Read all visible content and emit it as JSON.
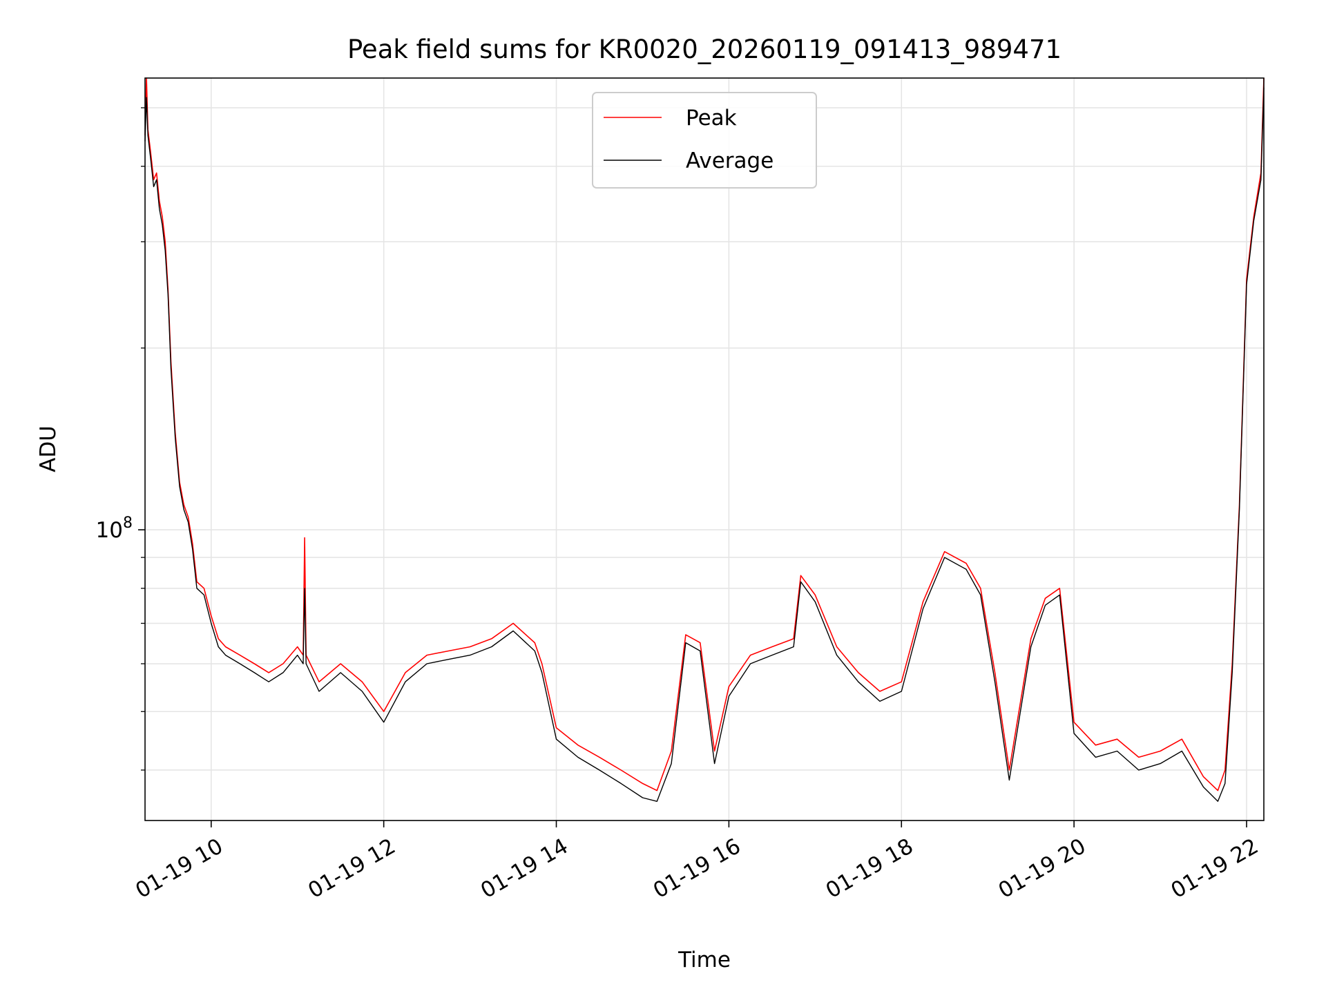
{
  "chart_data": {
    "type": "line",
    "title": "Peak field sums for KR0020_20260119_091413_989471",
    "xlabel": "Time",
    "ylabel": "ADU",
    "y_scale": "log",
    "grid": true,
    "legend_position": "top-center",
    "x_range": [
      "01-19 09:14",
      "01-19 22:12"
    ],
    "y_range": [
      33000000,
      560000000
    ],
    "x_ticks": [
      {
        "t": "01-19 10:00",
        "label": "01-19 10"
      },
      {
        "t": "01-19 12:00",
        "label": "01-19 12"
      },
      {
        "t": "01-19 14:00",
        "label": "01-19 14"
      },
      {
        "t": "01-19 16:00",
        "label": "01-19 16"
      },
      {
        "t": "01-19 18:00",
        "label": "01-19 18"
      },
      {
        "t": "01-19 20:00",
        "label": "01-19 20"
      },
      {
        "t": "01-19 22:00",
        "label": "01-19 22"
      }
    ],
    "y_major_ticks": [
      {
        "value": 100000000,
        "label_base": "10",
        "label_exp": "8"
      }
    ],
    "y_minor_ticks": [
      40000000,
      50000000,
      60000000,
      70000000,
      80000000,
      90000000,
      200000000,
      300000000,
      400000000,
      500000000
    ],
    "series": [
      {
        "name": "Peak",
        "color": "#ff0000",
        "x": [
          "01-19 09:14",
          "01-19 09:15",
          "01-19 09:16",
          "01-19 09:18",
          "01-19 09:20",
          "01-19 09:22",
          "01-19 09:24",
          "01-19 09:26",
          "01-19 09:28",
          "01-19 09:30",
          "01-19 09:32",
          "01-19 09:35",
          "01-19 09:38",
          "01-19 09:41",
          "01-19 09:44",
          "01-19 09:47",
          "01-19 09:50",
          "01-19 09:55",
          "01-19 10:00",
          "01-19 10:05",
          "01-19 10:10",
          "01-19 10:20",
          "01-19 10:30",
          "01-19 10:40",
          "01-19 10:50",
          "01-19 11:00",
          "01-19 11:04",
          "01-19 11:05",
          "01-19 11:06",
          "01-19 11:15",
          "01-19 11:30",
          "01-19 11:45",
          "01-19 12:00",
          "01-19 12:15",
          "01-19 12:30",
          "01-19 12:45",
          "01-19 13:00",
          "01-19 13:15",
          "01-19 13:30",
          "01-19 13:45",
          "01-19 13:50",
          "01-19 14:00",
          "01-19 14:15",
          "01-19 14:30",
          "01-19 14:45",
          "01-19 15:00",
          "01-19 15:10",
          "01-19 15:20",
          "01-19 15:30",
          "01-19 15:40",
          "01-19 15:50",
          "01-19 16:00",
          "01-19 16:15",
          "01-19 16:30",
          "01-19 16:45",
          "01-19 16:50",
          "01-19 17:00",
          "01-19 17:15",
          "01-19 17:30",
          "01-19 17:45",
          "01-19 18:00",
          "01-19 18:15",
          "01-19 18:30",
          "01-19 18:45",
          "01-19 18:55",
          "01-19 19:05",
          "01-19 19:15",
          "01-19 19:30",
          "01-19 19:40",
          "01-19 19:50",
          "01-19 20:00",
          "01-19 20:15",
          "01-19 20:30",
          "01-19 20:45",
          "01-19 21:00",
          "01-19 21:15",
          "01-19 21:30",
          "01-19 21:40",
          "01-19 21:45",
          "01-19 21:50",
          "01-19 21:55",
          "01-19 22:00",
          "01-19 22:05",
          "01-19 22:10",
          "01-19 22:12"
        ],
        "y": [
          450000000,
          560000000,
          460000000,
          420000000,
          380000000,
          390000000,
          350000000,
          330000000,
          300000000,
          250000000,
          190000000,
          145000000,
          120000000,
          110000000,
          105000000,
          95000000,
          82000000,
          80000000,
          72000000,
          66000000,
          64000000,
          62000000,
          60000000,
          58000000,
          60000000,
          64000000,
          62000000,
          97000000,
          62000000,
          56000000,
          60000000,
          56000000,
          50000000,
          58000000,
          62000000,
          63000000,
          64000000,
          66000000,
          70000000,
          65000000,
          60000000,
          47000000,
          44000000,
          42000000,
          40000000,
          38000000,
          37000000,
          43000000,
          67000000,
          65000000,
          43000000,
          55000000,
          62000000,
          64000000,
          66000000,
          84000000,
          78000000,
          64000000,
          58000000,
          54000000,
          56000000,
          76000000,
          92000000,
          88000000,
          80000000,
          58000000,
          40000000,
          66000000,
          77000000,
          80000000,
          48000000,
          44000000,
          45000000,
          42000000,
          43000000,
          45000000,
          39000000,
          37000000,
          40000000,
          60000000,
          110000000,
          260000000,
          330000000,
          390000000,
          560000000
        ]
      },
      {
        "name": "Average",
        "color": "#000000",
        "x": [
          "01-19 09:14",
          "01-19 09:15",
          "01-19 09:16",
          "01-19 09:18",
          "01-19 09:20",
          "01-19 09:22",
          "01-19 09:24",
          "01-19 09:26",
          "01-19 09:28",
          "01-19 09:30",
          "01-19 09:32",
          "01-19 09:35",
          "01-19 09:38",
          "01-19 09:41",
          "01-19 09:44",
          "01-19 09:47",
          "01-19 09:50",
          "01-19 09:55",
          "01-19 10:00",
          "01-19 10:05",
          "01-19 10:10",
          "01-19 10:20",
          "01-19 10:30",
          "01-19 10:40",
          "01-19 10:50",
          "01-19 11:00",
          "01-19 11:04",
          "01-19 11:05",
          "01-19 11:06",
          "01-19 11:15",
          "01-19 11:30",
          "01-19 11:45",
          "01-19 12:00",
          "01-19 12:15",
          "01-19 12:30",
          "01-19 12:45",
          "01-19 13:00",
          "01-19 13:15",
          "01-19 13:30",
          "01-19 13:45",
          "01-19 13:50",
          "01-19 14:00",
          "01-19 14:15",
          "01-19 14:30",
          "01-19 14:45",
          "01-19 15:00",
          "01-19 15:10",
          "01-19 15:20",
          "01-19 15:30",
          "01-19 15:40",
          "01-19 15:50",
          "01-19 16:00",
          "01-19 16:15",
          "01-19 16:30",
          "01-19 16:45",
          "01-19 16:50",
          "01-19 17:00",
          "01-19 17:15",
          "01-19 17:30",
          "01-19 17:45",
          "01-19 18:00",
          "01-19 18:15",
          "01-19 18:30",
          "01-19 18:45",
          "01-19 18:55",
          "01-19 19:05",
          "01-19 19:15",
          "01-19 19:30",
          "01-19 19:40",
          "01-19 19:50",
          "01-19 20:00",
          "01-19 20:15",
          "01-19 20:30",
          "01-19 20:45",
          "01-19 21:00",
          "01-19 21:15",
          "01-19 21:30",
          "01-19 21:40",
          "01-19 21:45",
          "01-19 21:50",
          "01-19 21:55",
          "01-19 22:00",
          "01-19 22:05",
          "01-19 22:10",
          "01-19 22:12"
        ],
        "y": [
          440000000,
          520000000,
          450000000,
          410000000,
          370000000,
          380000000,
          340000000,
          320000000,
          290000000,
          245000000,
          185000000,
          142000000,
          118000000,
          108000000,
          103000000,
          93000000,
          80000000,
          78000000,
          70000000,
          64000000,
          62000000,
          60000000,
          58000000,
          56000000,
          58000000,
          62000000,
          60000000,
          80000000,
          60000000,
          54000000,
          58000000,
          54000000,
          48000000,
          56000000,
          60000000,
          61000000,
          62000000,
          64000000,
          68000000,
          63000000,
          58000000,
          45000000,
          42000000,
          40000000,
          38000000,
          36000000,
          35500000,
          41000000,
          65000000,
          63000000,
          41000000,
          53000000,
          60000000,
          62000000,
          64000000,
          82000000,
          76000000,
          62000000,
          56000000,
          52000000,
          54000000,
          74000000,
          90000000,
          86000000,
          78000000,
          56000000,
          38500000,
          64000000,
          75000000,
          78000000,
          46000000,
          42000000,
          43000000,
          40000000,
          41000000,
          43000000,
          37500000,
          35500000,
          38000000,
          58000000,
          108000000,
          255000000,
          325000000,
          380000000,
          540000000
        ]
      }
    ]
  }
}
